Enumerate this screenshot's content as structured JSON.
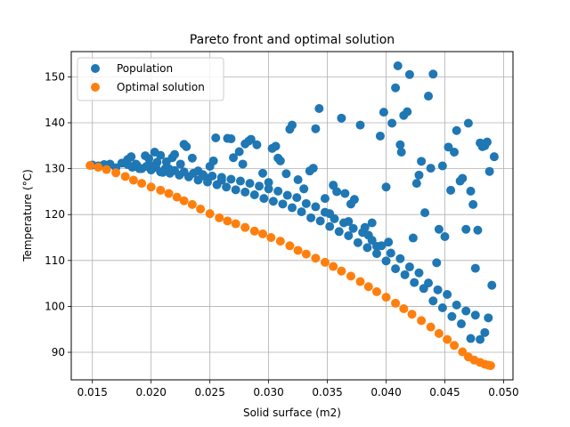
{
  "chart_data": {
    "type": "scatter",
    "title": "Pareto front and optimal solution",
    "xlabel": "Solid surface (m2)",
    "ylabel": "Temperature (°C)",
    "xlim": [
      0.0132,
      0.0508
    ],
    "ylim": [
      84.0,
      155.5
    ],
    "x_ticks": [
      0.015,
      0.02,
      0.025,
      0.03,
      0.035,
      0.04,
      0.045,
      0.05
    ],
    "x_tick_labels": [
      "0.015",
      "0.020",
      "0.025",
      "0.030",
      "0.035",
      "0.040",
      "0.045",
      "0.050"
    ],
    "y_ticks": [
      90,
      100,
      110,
      120,
      130,
      140,
      150
    ],
    "y_tick_labels": [
      "90",
      "100",
      "110",
      "120",
      "130",
      "140",
      "150"
    ],
    "grid": true,
    "legend_position": "top-left",
    "series": [
      {
        "name": "Population",
        "color": "#1f77b4",
        "points": [
          [
            0.015,
            130.8
          ],
          [
            0.0155,
            130.6
          ],
          [
            0.016,
            130.9
          ],
          [
            0.0165,
            131.0
          ],
          [
            0.017,
            130.2
          ],
          [
            0.0175,
            131.2
          ],
          [
            0.018,
            132.0
          ],
          [
            0.0183,
            132.6
          ],
          [
            0.0187,
            131.0
          ],
          [
            0.019,
            130.0
          ],
          [
            0.0195,
            132.8
          ],
          [
            0.0198,
            132.2
          ],
          [
            0.02,
            130.6
          ],
          [
            0.0203,
            133.6
          ],
          [
            0.0205,
            131.4
          ],
          [
            0.0208,
            132.9
          ],
          [
            0.021,
            129.2
          ],
          [
            0.0213,
            131.5
          ],
          [
            0.0215,
            130.0
          ],
          [
            0.0218,
            132.4
          ],
          [
            0.022,
            133.1
          ],
          [
            0.0225,
            131.0
          ],
          [
            0.0228,
            135.3
          ],
          [
            0.023,
            134.8
          ],
          [
            0.0235,
            132.3
          ],
          [
            0.024,
            129.5
          ],
          [
            0.0245,
            128.4
          ],
          [
            0.025,
            130.5
          ],
          [
            0.0253,
            131.7
          ],
          [
            0.0255,
            136.7
          ],
          [
            0.026,
            127.5
          ],
          [
            0.0265,
            136.6
          ],
          [
            0.0268,
            136.5
          ],
          [
            0.027,
            132.4
          ],
          [
            0.0275,
            133.7
          ],
          [
            0.0278,
            131.0
          ],
          [
            0.028,
            135.4
          ],
          [
            0.0283,
            136.0
          ],
          [
            0.0285,
            136.4
          ],
          [
            0.029,
            135.2
          ],
          [
            0.0295,
            129.0
          ],
          [
            0.03,
            127.0
          ],
          [
            0.0303,
            134.4
          ],
          [
            0.0306,
            134.9
          ],
          [
            0.0308,
            132.3
          ],
          [
            0.031,
            131.7
          ],
          [
            0.0315,
            128.9
          ],
          [
            0.0318,
            138.6
          ],
          [
            0.032,
            139.5
          ],
          [
            0.0325,
            127.6
          ],
          [
            0.033,
            125.6
          ],
          [
            0.0335,
            129.5
          ],
          [
            0.0338,
            130.1
          ],
          [
            0.034,
            138.7
          ],
          [
            0.0343,
            143.1
          ],
          [
            0.0348,
            123.5
          ],
          [
            0.0352,
            120.2
          ],
          [
            0.0355,
            126.4
          ],
          [
            0.0358,
            125.0
          ],
          [
            0.0362,
            141.0
          ],
          [
            0.0365,
            124.6
          ],
          [
            0.0368,
            118.5
          ],
          [
            0.037,
            122.3
          ],
          [
            0.0373,
            123.3
          ],
          [
            0.0378,
            139.5
          ],
          [
            0.0382,
            117.2
          ],
          [
            0.0385,
            115.5
          ],
          [
            0.0388,
            118.2
          ],
          [
            0.0392,
            113.1
          ],
          [
            0.0395,
            137.1
          ],
          [
            0.0398,
            142.3
          ],
          [
            0.04,
            126.0
          ],
          [
            0.0402,
            114.0
          ],
          [
            0.0405,
            139.9
          ],
          [
            0.0408,
            147.6
          ],
          [
            0.041,
            152.4
          ],
          [
            0.0412,
            135.2
          ],
          [
            0.0413,
            133.6
          ],
          [
            0.0415,
            141.6
          ],
          [
            0.0418,
            142.4
          ],
          [
            0.042,
            150.5
          ],
          [
            0.0423,
            114.9
          ],
          [
            0.0426,
            126.8
          ],
          [
            0.0428,
            128.6
          ],
          [
            0.043,
            131.6
          ],
          [
            0.0433,
            120.4
          ],
          [
            0.0436,
            145.8
          ],
          [
            0.0438,
            130.1
          ],
          [
            0.044,
            150.6
          ],
          [
            0.0443,
            109.5
          ],
          [
            0.0445,
            116.8
          ],
          [
            0.0448,
            130.6
          ],
          [
            0.045,
            115.2
          ],
          [
            0.0453,
            134.7
          ],
          [
            0.0455,
            125.3
          ],
          [
            0.0458,
            133.6
          ],
          [
            0.046,
            138.3
          ],
          [
            0.0463,
            127.3
          ],
          [
            0.0465,
            127.9
          ],
          [
            0.0468,
            116.8
          ],
          [
            0.047,
            139.9
          ],
          [
            0.0472,
            125.1
          ],
          [
            0.0474,
            122.2
          ],
          [
            0.0476,
            108.3
          ],
          [
            0.0478,
            116.6
          ],
          [
            0.048,
            135.6
          ],
          [
            0.0482,
            134.8
          ],
          [
            0.0484,
            135.0
          ],
          [
            0.0486,
            135.8
          ],
          [
            0.0488,
            129.4
          ],
          [
            0.049,
            104.6
          ],
          [
            0.0492,
            132.6
          ],
          [
            0.0487,
            97.5
          ],
          [
            0.0484,
            94.3
          ],
          [
            0.048,
            92.8
          ],
          [
            0.0476,
            98.1
          ],
          [
            0.0472,
            93.0
          ],
          [
            0.0468,
            99.0
          ],
          [
            0.0464,
            96.2
          ],
          [
            0.046,
            100.3
          ],
          [
            0.0456,
            97.8
          ],
          [
            0.0452,
            102.6
          ],
          [
            0.0448,
            99.7
          ],
          [
            0.0444,
            103.6
          ],
          [
            0.044,
            101.2
          ],
          [
            0.0436,
            105.1
          ],
          [
            0.0432,
            103.9
          ],
          [
            0.0428,
            107.3
          ],
          [
            0.0424,
            105.2
          ],
          [
            0.042,
            108.6
          ],
          [
            0.0416,
            106.9
          ],
          [
            0.0412,
            110.4
          ],
          [
            0.0408,
            108.2
          ],
          [
            0.0404,
            111.6
          ],
          [
            0.04,
            109.9
          ],
          [
            0.0396,
            113.2
          ],
          [
            0.0392,
            111.5
          ],
          [
            0.0388,
            114.4
          ],
          [
            0.0384,
            112.8
          ],
          [
            0.038,
            116.1
          ],
          [
            0.0376,
            113.9
          ],
          [
            0.0372,
            117.0
          ],
          [
            0.0368,
            115.4
          ],
          [
            0.0364,
            118.2
          ],
          [
            0.036,
            116.3
          ],
          [
            0.0356,
            119.1
          ],
          [
            0.0352,
            117.4
          ],
          [
            0.0348,
            120.5
          ],
          [
            0.0344,
            118.6
          ],
          [
            0.034,
            121.7
          ],
          [
            0.0336,
            119.3
          ],
          [
            0.0332,
            122.4
          ],
          [
            0.0328,
            120.6
          ],
          [
            0.0324,
            123.7
          ],
          [
            0.032,
            121.5
          ],
          [
            0.0316,
            124.2
          ],
          [
            0.0312,
            122.3
          ],
          [
            0.0308,
            125.1
          ],
          [
            0.0304,
            122.9
          ],
          [
            0.03,
            125.6
          ],
          [
            0.0296,
            123.5
          ],
          [
            0.0292,
            126.2
          ],
          [
            0.0288,
            124.3
          ],
          [
            0.0284,
            126.8
          ],
          [
            0.028,
            124.9
          ],
          [
            0.0276,
            127.3
          ],
          [
            0.0272,
            125.4
          ],
          [
            0.0268,
            127.7
          ],
          [
            0.0264,
            126.0
          ],
          [
            0.026,
            128.1
          ],
          [
            0.0256,
            126.5
          ],
          [
            0.0252,
            128.4
          ],
          [
            0.0248,
            127.1
          ],
          [
            0.0244,
            128.7
          ],
          [
            0.024,
            127.5
          ],
          [
            0.0236,
            129.0
          ],
          [
            0.0232,
            128.2
          ],
          [
            0.0228,
            129.3
          ],
          [
            0.0224,
            128.6
          ],
          [
            0.022,
            129.6
          ],
          [
            0.0216,
            129.0
          ],
          [
            0.0212,
            130.0
          ],
          [
            0.0208,
            129.3
          ],
          [
            0.0204,
            130.3
          ],
          [
            0.02,
            129.7
          ],
          [
            0.0196,
            130.5
          ],
          [
            0.0192,
            130.0
          ],
          [
            0.0188,
            130.7
          ],
          [
            0.0184,
            130.3
          ],
          [
            0.018,
            130.9
          ]
        ]
      },
      {
        "name": "Optimal solution",
        "color": "#ff7f0e",
        "points": [
          [
            0.0148,
            130.7
          ],
          [
            0.0155,
            130.3
          ],
          [
            0.0162,
            129.8
          ],
          [
            0.017,
            129.1
          ],
          [
            0.0178,
            128.3
          ],
          [
            0.0185,
            127.5
          ],
          [
            0.0192,
            126.8
          ],
          [
            0.02,
            126.0
          ],
          [
            0.0208,
            125.3
          ],
          [
            0.0215,
            124.6
          ],
          [
            0.0222,
            123.8
          ],
          [
            0.0228,
            123.0
          ],
          [
            0.0235,
            122.2
          ],
          [
            0.0242,
            121.2
          ],
          [
            0.025,
            120.2
          ],
          [
            0.0258,
            119.3
          ],
          [
            0.0265,
            118.6
          ],
          [
            0.0272,
            118.0
          ],
          [
            0.028,
            117.2
          ],
          [
            0.0288,
            116.4
          ],
          [
            0.0295,
            115.8
          ],
          [
            0.0302,
            115.0
          ],
          [
            0.031,
            114.2
          ],
          [
            0.0318,
            113.2
          ],
          [
            0.0325,
            112.2
          ],
          [
            0.0332,
            111.4
          ],
          [
            0.034,
            110.5
          ],
          [
            0.0348,
            109.6
          ],
          [
            0.0355,
            108.7
          ],
          [
            0.0362,
            107.7
          ],
          [
            0.037,
            106.6
          ],
          [
            0.0378,
            105.4
          ],
          [
            0.0385,
            104.3
          ],
          [
            0.0392,
            103.2
          ],
          [
            0.04,
            102.0
          ],
          [
            0.0408,
            100.7
          ],
          [
            0.0415,
            99.5
          ],
          [
            0.0422,
            98.3
          ],
          [
            0.043,
            96.9
          ],
          [
            0.0438,
            95.5
          ],
          [
            0.0445,
            94.1
          ],
          [
            0.0452,
            92.8
          ],
          [
            0.0458,
            91.5
          ],
          [
            0.0465,
            90.1
          ],
          [
            0.047,
            89.0
          ],
          [
            0.0475,
            88.3
          ],
          [
            0.048,
            87.8
          ],
          [
            0.0484,
            87.4
          ],
          [
            0.0487,
            87.2
          ],
          [
            0.0489,
            87.1
          ]
        ]
      }
    ]
  }
}
